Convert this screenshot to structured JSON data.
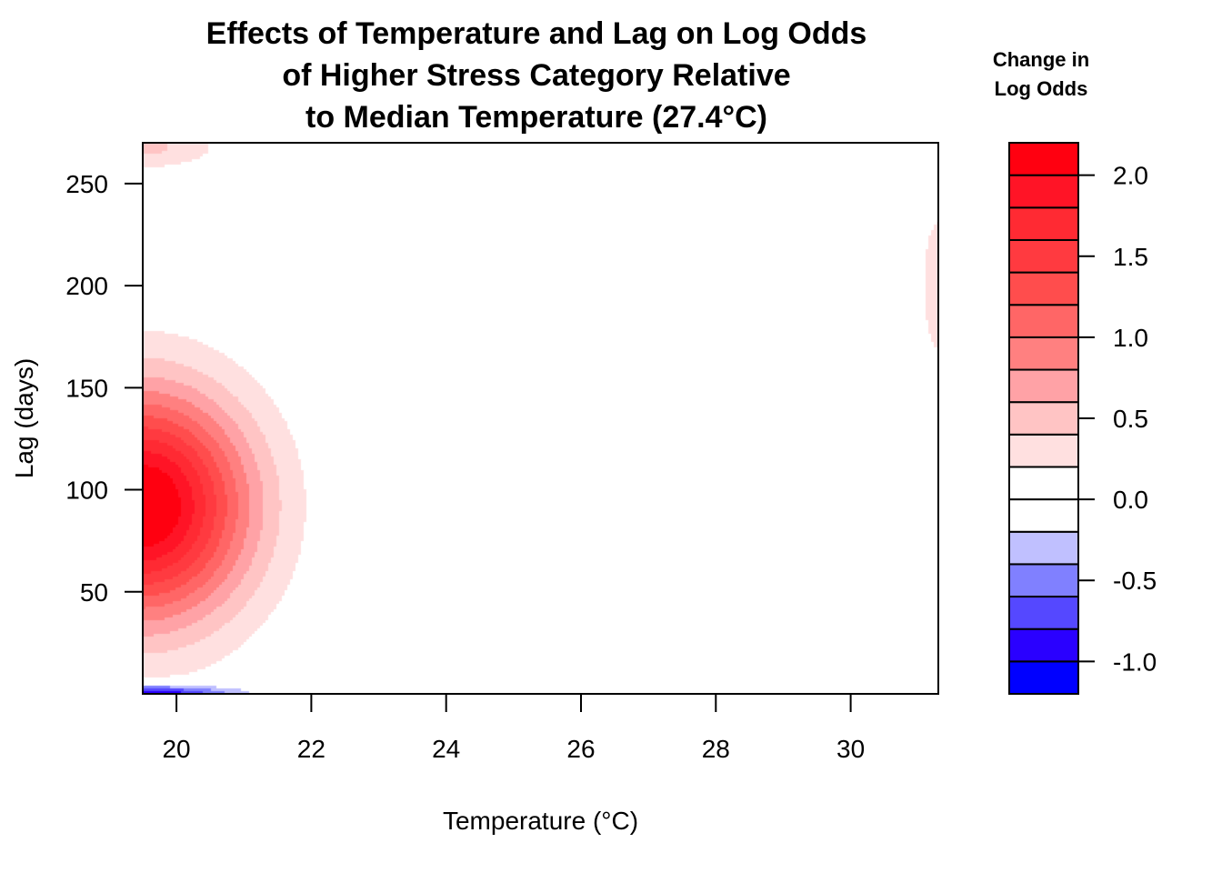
{
  "chart_data": {
    "type": "heatmap",
    "title": [
      "Effects of Temperature and Lag on Log Odds",
      "of Higher Stress Category Relative",
      "to Median Temperature (27.4°C)"
    ],
    "xlabel": "Temperature (°C)",
    "ylabel": "Lag (days)",
    "xlim": [
      19.5,
      31.3
    ],
    "ylim": [
      0,
      270
    ],
    "x_ticks": [
      20,
      22,
      24,
      26,
      28,
      30
    ],
    "y_ticks": [
      50,
      100,
      150,
      200,
      250
    ],
    "grid": false,
    "legend": {
      "title": [
        "Change in",
        "Log Odds"
      ],
      "placement": "right",
      "ticks": [
        "2.0",
        "1.5",
        "1.0",
        "0.5",
        "0.0",
        "-0.5",
        "-1.0"
      ],
      "tick_values": [
        2.0,
        1.5,
        1.0,
        0.5,
        0.0,
        -0.5,
        -1.0
      ],
      "range": [
        -1.2,
        2.2
      ],
      "levels": [
        -1.2,
        -1.0,
        -0.8,
        -0.6,
        -0.4,
        -0.2,
        0.0,
        0.2,
        0.4,
        0.6,
        0.8,
        1.0,
        1.2,
        1.4,
        1.6,
        1.8,
        2.0,
        2.2
      ],
      "colors": [
        "#0000FF",
        "#2A00FF",
        "#5548FF",
        "#8080FF",
        "#C0C0FF",
        "#FFFFFF",
        "#FFFFFF",
        "#FFE0E0",
        "#FFC4C4",
        "#FFA2A6",
        "#FF8080",
        "#FF6666",
        "#FF4D4D",
        "#FF3A40",
        "#FF2A33",
        "#FF1426",
        "#FF0010"
      ]
    },
    "features": [
      {
        "kind": "peak",
        "x": 19.5,
        "y": 92,
        "value": 2.2
      },
      {
        "kind": "peak",
        "x": 19.5,
        "y": 268,
        "value": 0.4
      },
      {
        "kind": "trough",
        "x": 19.5,
        "y": 0,
        "value": -1.1
      },
      {
        "kind": "peak",
        "x": 31.3,
        "y": 200,
        "value": 0.25
      }
    ]
  }
}
